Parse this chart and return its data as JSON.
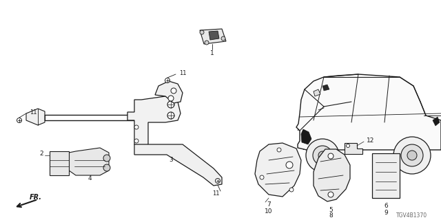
{
  "diagram_id": "TGV4B1370",
  "background_color": "#ffffff",
  "line_color": "#1a1a1a",
  "text_color": "#1a1a1a",
  "figsize": [
    6.4,
    3.2
  ],
  "dpi": 100
}
